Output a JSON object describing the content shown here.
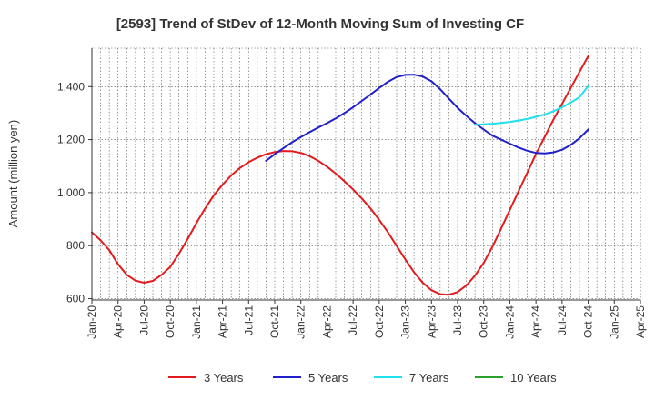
{
  "chart_data": {
    "type": "line",
    "title": "[2593]  Trend of StDev of 12-Month Moving Sum of Investing CF",
    "xlabel": "",
    "ylabel": "Amount (million yen)",
    "ylim": [
      595,
      1545
    ],
    "yticks": [
      600,
      800,
      1000,
      1200,
      1400
    ],
    "ytick_labels": [
      "600",
      "800",
      "1,000",
      "1,200",
      "1,400"
    ],
    "xlim": [
      "2020-01",
      "2025-04"
    ],
    "xtick_labels": [
      "Jan-20",
      "Apr-20",
      "Jul-20",
      "Oct-20",
      "Jan-21",
      "Apr-21",
      "Jul-21",
      "Oct-21",
      "Jan-22",
      "Apr-22",
      "Jul-22",
      "Oct-22",
      "Jan-23",
      "Apr-23",
      "Jul-23",
      "Oct-23",
      "Jan-24",
      "Apr-24",
      "Jul-24",
      "Oct-24",
      "Jan-25",
      "Apr-25"
    ],
    "grid": true,
    "legend_position": "bottom",
    "series": [
      {
        "name": "3 Years",
        "color": "#e31a1c",
        "x": [
          "2020-01",
          "2020-02",
          "2020-03",
          "2020-04",
          "2020-05",
          "2020-06",
          "2020-07",
          "2020-08",
          "2020-09",
          "2020-10",
          "2020-11",
          "2020-12",
          "2021-01",
          "2021-02",
          "2021-03",
          "2021-04",
          "2021-05",
          "2021-06",
          "2021-07",
          "2021-08",
          "2021-09",
          "2021-10",
          "2021-11",
          "2021-12",
          "2022-01",
          "2022-02",
          "2022-03",
          "2022-04",
          "2022-05",
          "2022-06",
          "2022-07",
          "2022-08",
          "2022-09",
          "2022-10",
          "2022-11",
          "2022-12",
          "2023-01",
          "2023-02",
          "2023-03",
          "2023-04",
          "2023-05",
          "2023-06",
          "2023-07",
          "2023-08",
          "2023-09",
          "2023-10",
          "2023-11",
          "2023-12",
          "2024-01",
          "2024-02",
          "2024-03",
          "2024-04",
          "2024-05",
          "2024-06",
          "2024-07",
          "2024-08",
          "2024-09",
          "2024-10"
        ],
        "values": [
          850,
          820,
          783,
          730,
          690,
          668,
          660,
          667,
          690,
          720,
          770,
          825,
          885,
          940,
          990,
          1030,
          1065,
          1093,
          1115,
          1132,
          1145,
          1153,
          1157,
          1156,
          1150,
          1138,
          1120,
          1098,
          1072,
          1043,
          1012,
          978,
          940,
          897,
          851,
          799,
          748,
          700,
          660,
          632,
          617,
          615,
          625,
          650,
          687,
          735,
          796,
          865,
          935,
          1005,
          1075,
          1145,
          1210,
          1275,
          1335,
          1395,
          1455,
          1515
        ]
      },
      {
        "name": "5 Years",
        "color": "#1f1fcc",
        "x": [
          "2021-09",
          "2021-10",
          "2021-11",
          "2021-12",
          "2022-01",
          "2022-02",
          "2022-03",
          "2022-04",
          "2022-05",
          "2022-06",
          "2022-07",
          "2022-08",
          "2022-09",
          "2022-10",
          "2022-11",
          "2022-12",
          "2023-01",
          "2023-02",
          "2023-03",
          "2023-04",
          "2023-05",
          "2023-06",
          "2023-07",
          "2023-08",
          "2023-09",
          "2023-10",
          "2023-11",
          "2023-12",
          "2024-01",
          "2024-02",
          "2024-03",
          "2024-04",
          "2024-05",
          "2024-06",
          "2024-07",
          "2024-08",
          "2024-09",
          "2024-10"
        ],
        "values": [
          1120,
          1145,
          1168,
          1190,
          1210,
          1228,
          1246,
          1262,
          1280,
          1300,
          1322,
          1346,
          1370,
          1395,
          1418,
          1436,
          1444,
          1445,
          1438,
          1420,
          1390,
          1355,
          1320,
          1290,
          1262,
          1238,
          1215,
          1200,
          1185,
          1170,
          1158,
          1150,
          1148,
          1152,
          1162,
          1180,
          1205,
          1238
        ]
      },
      {
        "name": "7 Years",
        "color": "#1fe0ef",
        "x": [
          "2023-09",
          "2023-10",
          "2023-11",
          "2023-12",
          "2024-01",
          "2024-02",
          "2024-03",
          "2024-04",
          "2024-05",
          "2024-06",
          "2024-07",
          "2024-08",
          "2024-09",
          "2024-10"
        ],
        "values": [
          1256,
          1258,
          1260,
          1263,
          1267,
          1272,
          1278,
          1286,
          1295,
          1307,
          1322,
          1340,
          1360,
          1402
        ]
      },
      {
        "name": "10 Years",
        "color": "#2ca02c",
        "x": [],
        "values": []
      }
    ]
  }
}
